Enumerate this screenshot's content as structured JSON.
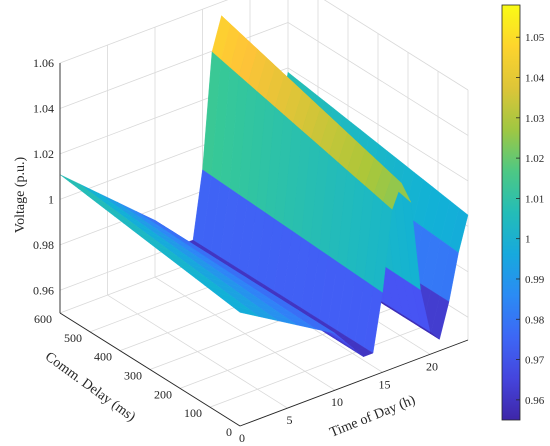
{
  "chart_data": {
    "type": "surface",
    "xlabel": "Time of Day (h)",
    "ylabel": "Comm. Delay (ms)",
    "zlabel": "Voltage (p.u.)",
    "xlim": [
      0,
      24
    ],
    "ylim": [
      0,
      600
    ],
    "zlim": [
      0.95,
      1.06
    ],
    "xticks": [
      "0",
      "5",
      "10",
      "15",
      "20"
    ],
    "yticks": [
      "0",
      "100",
      "200",
      "300",
      "400",
      "500",
      "600"
    ],
    "zticks": [
      "0.96",
      "0.98",
      "1",
      "1.02",
      "1.04",
      "1.06"
    ],
    "colorbar": {
      "colormap": "parula",
      "range": [
        0.955,
        1.058
      ],
      "ticks": [
        "0.96",
        "0.97",
        "0.98",
        "0.99",
        "1",
        "1.01",
        "1.02",
        "1.03",
        "1.04",
        "1.05"
      ]
    },
    "grid": true,
    "x": [
      0,
      2,
      4,
      6,
      8,
      10,
      11,
      12,
      13,
      14,
      15,
      16,
      17,
      18,
      19,
      20,
      21,
      22,
      23,
      24
    ],
    "y_base": [
      1.0,
      0.995,
      0.99,
      0.985,
      0.98,
      0.975,
      0.97,
      0.965,
      0.96,
      0.96,
      0.985,
      1.02,
      1.03,
      1.02,
      0.98,
      0.96,
      0.955,
      0.97,
      0.99,
      1.005
    ],
    "delay_gain_per_100ms": 0.008
  }
}
